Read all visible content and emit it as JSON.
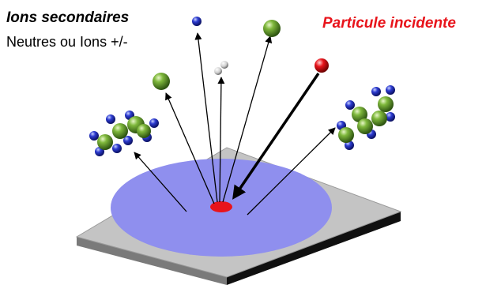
{
  "labels": {
    "secondary_ions": "Ions secondaires",
    "secondary_subtitle": "Neutres ou Ions +/-",
    "incident_particle": "Particule incidente"
  },
  "colors": {
    "incident": "#e8141b",
    "green_atom": "#5f9a2a",
    "blue_atom": "#1d2aa0",
    "crater": "#8f8fee",
    "surface_top": "#c4c4c4"
  },
  "icons": [
    "green-atom-icon",
    "blue-atom-icon",
    "red-incident-particle-icon",
    "white-atom-icon"
  ]
}
